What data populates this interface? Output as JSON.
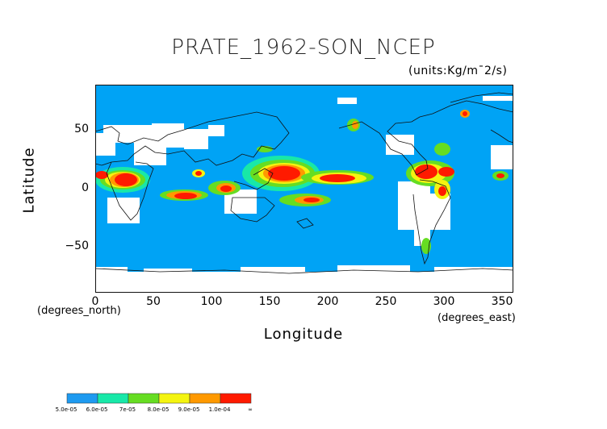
{
  "map": {
    "title": "PRATE_1962-SON_NCEP",
    "units": "(units:Kg/m¯2/s)",
    "x_axis": {
      "label": "Longitude",
      "unit_note": "(degrees_east)",
      "ticks": [
        "0",
        "50",
        "100",
        "150",
        "200",
        "250",
        "300",
        "350"
      ],
      "range": [
        0,
        360
      ]
    },
    "y_axis": {
      "label": "Latitude",
      "unit_note": "(degrees_north)",
      "ticks": [
        "50",
        "0",
        "−50"
      ],
      "range": [
        -90,
        90
      ]
    },
    "projection": "equirectangular",
    "colorbar": {
      "labels": [
        "5.0e-05",
        "6.0e-05",
        "7e-05",
        "8.0e-05",
        "9.0e-05",
        "1.0e-04",
        "∞"
      ],
      "colors": [
        "#1e9af0",
        "#18e8a8",
        "#66dd22",
        "#f4f410",
        "#ff9900",
        "#ff1a00"
      ]
    },
    "colors": {
      "background_field": "#00a3f5",
      "no_data": "#ffffff",
      "coastline": "#111111"
    }
  }
}
